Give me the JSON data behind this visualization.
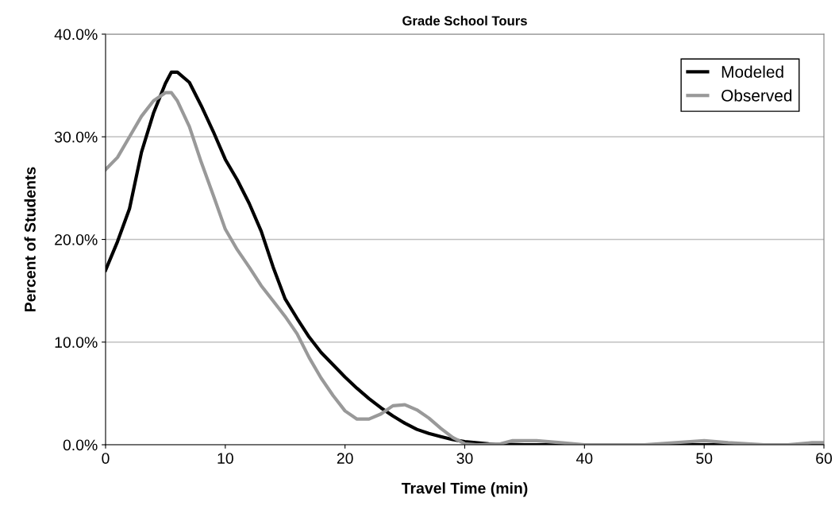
{
  "chart_data": {
    "type": "line",
    "title": "Grade School Tours",
    "xlabel": "Travel Time (min)",
    "ylabel": "Percent of Students",
    "xlim": [
      0,
      60
    ],
    "xticks": [
      0,
      10,
      20,
      30,
      40,
      50,
      60
    ],
    "ylim": [
      0,
      40
    ],
    "yticks": [
      {
        "value": 0,
        "label": "0.0%"
      },
      {
        "value": 10,
        "label": "10.0%"
      },
      {
        "value": 20,
        "label": "20.0%"
      },
      {
        "value": 30,
        "label": "30.0%"
      },
      {
        "value": 40,
        "label": "40.0%"
      }
    ],
    "grid": "y",
    "legend": "top right",
    "marker": "none",
    "line_style": "solid",
    "series": [
      {
        "name": "Modeled",
        "color": "#000000",
        "x": [
          0,
          1,
          2,
          3,
          4,
          5,
          5.5,
          6,
          7,
          8,
          9,
          10,
          11,
          12,
          13,
          14,
          15,
          16,
          17,
          18,
          19,
          20,
          21,
          22,
          23,
          24,
          25,
          26,
          27,
          28,
          29,
          30,
          32,
          35,
          60
        ],
        "values": [
          17.0,
          19.8,
          23.0,
          28.5,
          32.3,
          35.2,
          36.3,
          36.3,
          35.3,
          33.0,
          30.5,
          27.8,
          25.8,
          23.5,
          20.8,
          17.3,
          14.2,
          12.3,
          10.5,
          9.0,
          7.8,
          6.6,
          5.5,
          4.5,
          3.6,
          2.8,
          2.1,
          1.5,
          1.1,
          0.8,
          0.5,
          0.3,
          0.1,
          0.0,
          0.0
        ]
      },
      {
        "name": "Observed",
        "color": "#999999",
        "x": [
          0,
          1,
          2,
          3,
          4,
          5,
          5.5,
          6,
          7,
          8,
          9,
          10,
          11,
          12,
          13,
          14,
          15,
          16,
          17,
          18,
          19,
          20,
          21,
          22,
          23,
          24,
          25,
          26,
          27,
          28,
          29,
          30,
          31,
          33,
          34,
          36,
          38,
          40,
          45,
          50,
          52,
          55,
          57,
          59,
          60
        ],
        "values": [
          26.8,
          28.0,
          30.0,
          32.0,
          33.5,
          34.3,
          34.3,
          33.5,
          31.0,
          27.5,
          24.3,
          21.0,
          19.0,
          17.3,
          15.5,
          14.0,
          12.5,
          10.8,
          8.5,
          6.5,
          4.8,
          3.3,
          2.5,
          2.5,
          3.0,
          3.8,
          3.9,
          3.4,
          2.6,
          1.6,
          0.7,
          0.1,
          0.0,
          0.1,
          0.4,
          0.4,
          0.2,
          0.0,
          0.0,
          0.4,
          0.2,
          0.0,
          0.0,
          0.2,
          0.2
        ]
      }
    ]
  }
}
